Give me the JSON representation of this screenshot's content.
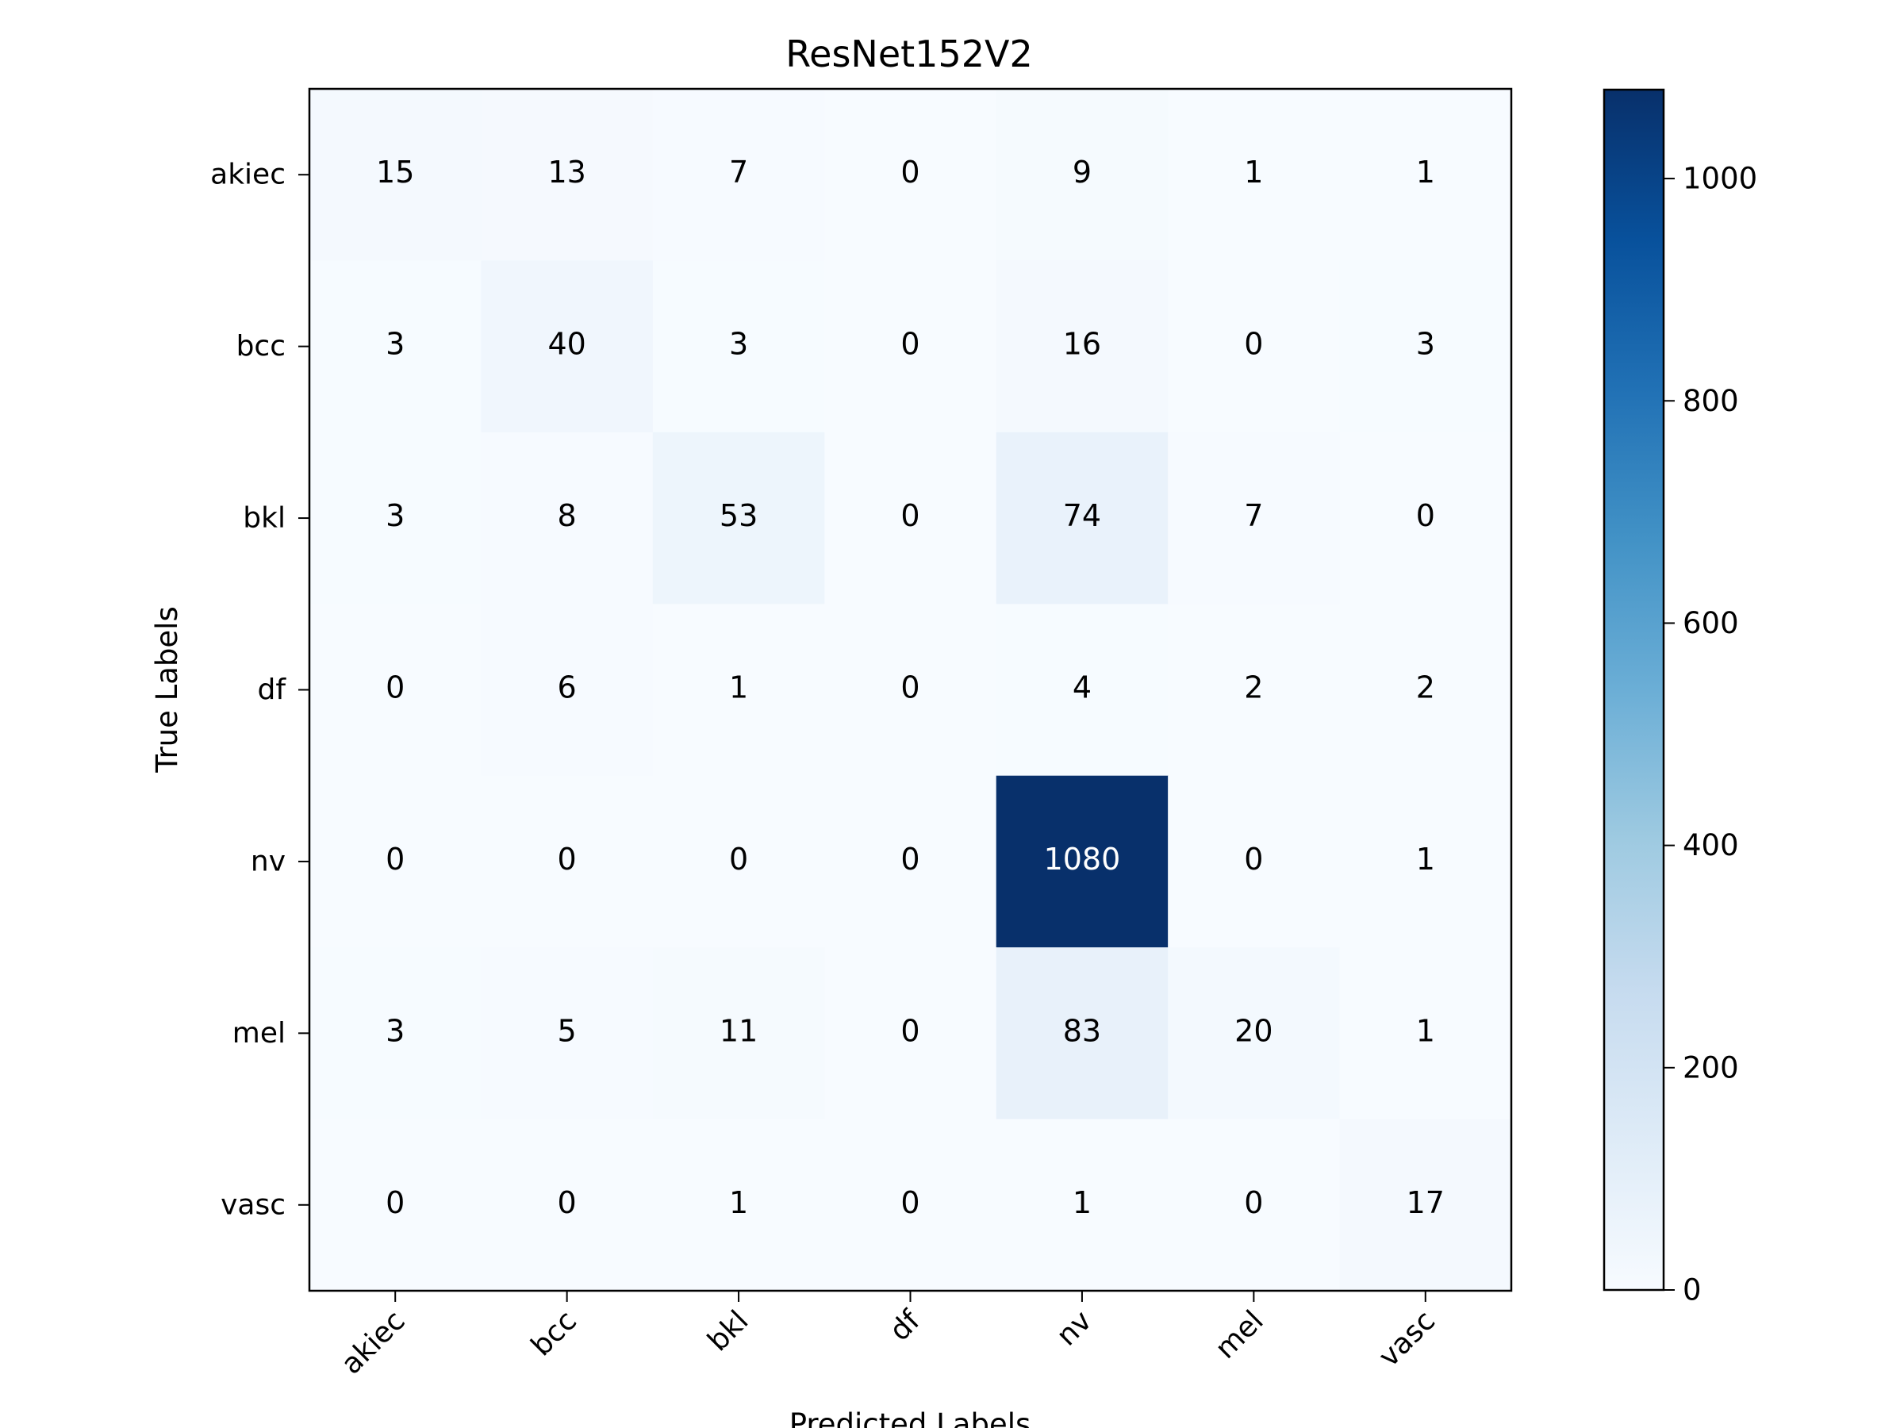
{
  "chart_data": {
    "type": "heatmap",
    "title": "ResNet152V2",
    "xlabel": "Predicted Labels",
    "ylabel": "True Labels",
    "x_categories": [
      "akiec",
      "bcc",
      "bkl",
      "df",
      "nv",
      "mel",
      "vasc"
    ],
    "y_categories": [
      "akiec",
      "bcc",
      "bkl",
      "df",
      "nv",
      "mel",
      "vasc"
    ],
    "matrix": [
      [
        15,
        13,
        7,
        0,
        9,
        1,
        1
      ],
      [
        3,
        40,
        3,
        0,
        16,
        0,
        3
      ],
      [
        3,
        8,
        53,
        0,
        74,
        7,
        0
      ],
      [
        0,
        6,
        1,
        0,
        4,
        2,
        2
      ],
      [
        0,
        0,
        0,
        0,
        1080,
        0,
        1
      ],
      [
        3,
        5,
        11,
        0,
        83,
        20,
        1
      ],
      [
        0,
        0,
        1,
        0,
        1,
        0,
        17
      ]
    ],
    "colormap": "Blues",
    "colorbar": {
      "min": 0,
      "max": 1080,
      "ticks": [
        0,
        200,
        400,
        600,
        800,
        1000
      ]
    },
    "x_tick_rotation_deg": 45,
    "grid": false
  }
}
